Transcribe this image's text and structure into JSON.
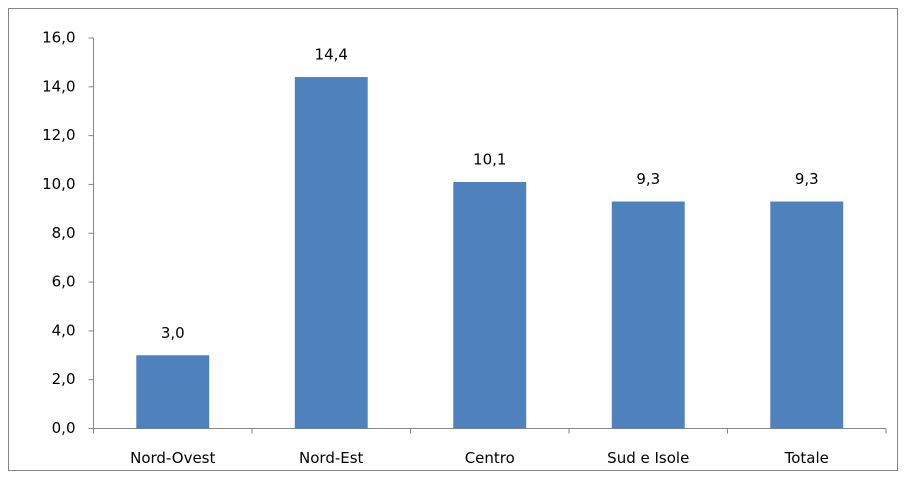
{
  "chart_data": {
    "type": "bar",
    "categories": [
      "Nord-Ovest",
      "Nord-Est",
      "Centro",
      "Sud e Isole",
      "Totale"
    ],
    "values": [
      3.0,
      14.4,
      10.1,
      9.3,
      9.3
    ],
    "value_labels": [
      "3,0",
      "14,4",
      "10,1",
      "9,3",
      "9,3"
    ],
    "color": "#4f81bd",
    "ylim": [
      0,
      16
    ],
    "yticks": [
      {
        "value": 0,
        "label": "0,0"
      },
      {
        "value": 2,
        "label": "2,0"
      },
      {
        "value": 4,
        "label": "4,0"
      },
      {
        "value": 6,
        "label": "6,0"
      },
      {
        "value": 8,
        "label": "8,0"
      },
      {
        "value": 10,
        "label": "10,0"
      },
      {
        "value": 12,
        "label": "12,0"
      },
      {
        "value": 14,
        "label": "14,0"
      },
      {
        "value": 16,
        "label": "16,0"
      }
    ],
    "grid": false
  }
}
